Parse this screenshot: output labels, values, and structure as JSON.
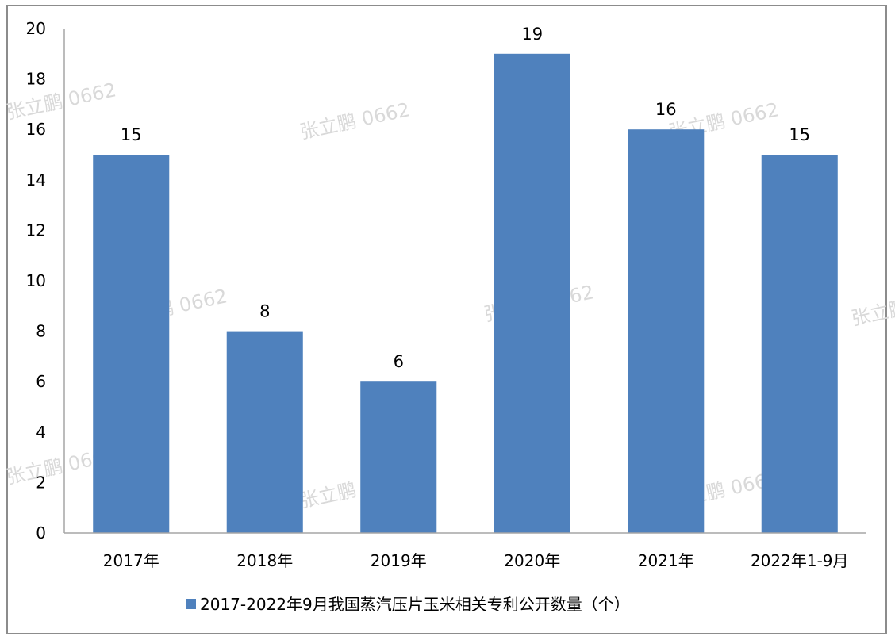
{
  "chart_data": {
    "type": "bar",
    "categories": [
      "2017年",
      "2018年",
      "2019年",
      "2020年",
      "2021年",
      "2022年1-9月"
    ],
    "series": [
      {
        "name": "2017-2022年9月我国蒸汽压片玉米相关专利公开数量（个）",
        "values": [
          15,
          8,
          6,
          19,
          16,
          15
        ]
      }
    ],
    "ylim": [
      0,
      20
    ],
    "yticks": [
      0,
      2,
      4,
      6,
      8,
      10,
      12,
      14,
      16,
      18,
      20
    ],
    "grid": false,
    "legend": "bottom",
    "title": "",
    "xlabel": "",
    "ylabel": ""
  },
  "colors": {
    "bar": "#4f81bd",
    "axis": "#a6a6a6",
    "frame": "#8c8c8c"
  },
  "watermark": "张立鹏 0662"
}
